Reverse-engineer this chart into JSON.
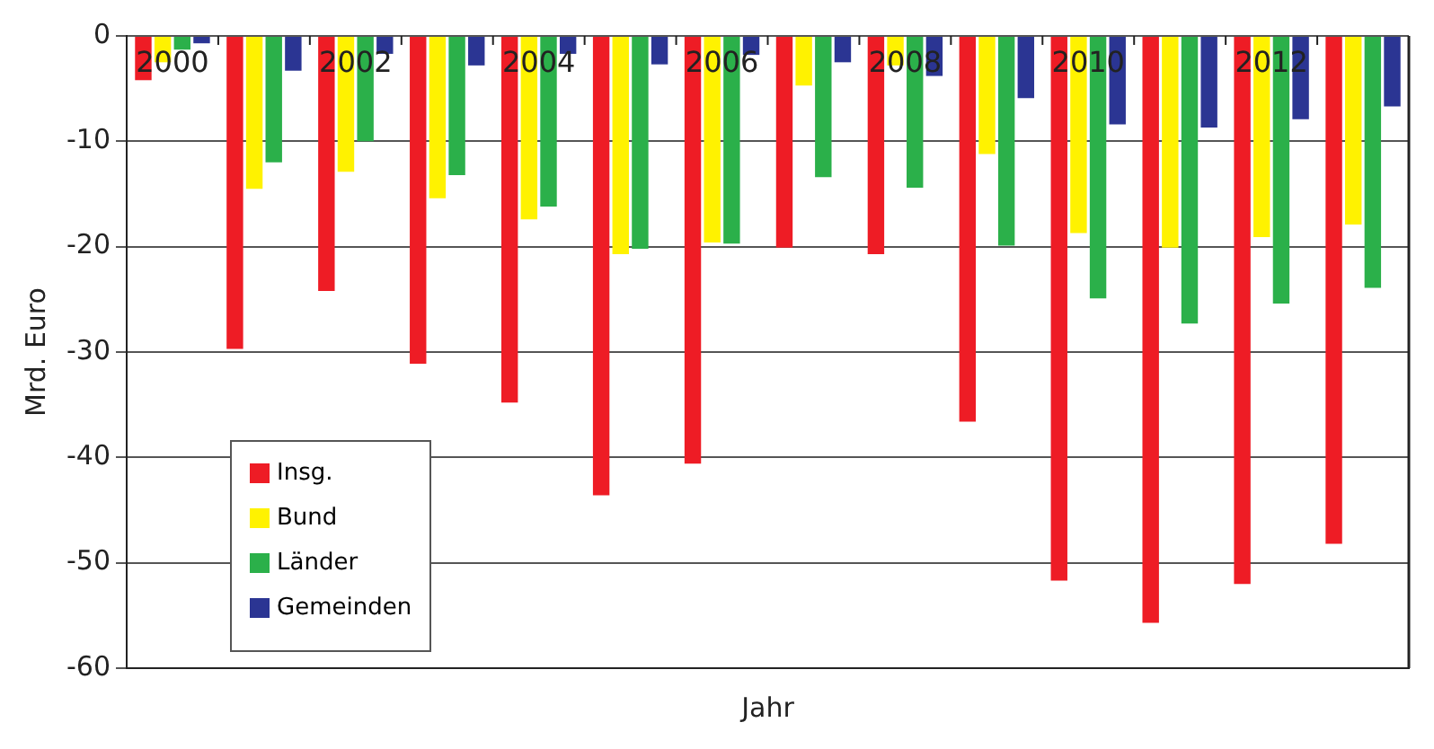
{
  "chart_data": {
    "type": "bar",
    "xlabel": "Jahr",
    "ylabel": "Mrd. Euro",
    "categories": [
      "2000",
      null,
      "2002",
      null,
      "2004",
      null,
      "2006",
      null,
      "2008",
      null,
      "2010",
      null,
      "2012",
      null
    ],
    "series": [
      {
        "name": "Insg.",
        "color": "#ee1c25",
        "values": [
          -4.2,
          -29.7,
          -24.2,
          -31.1,
          -34.8,
          -43.6,
          -40.6,
          -20.1,
          -20.7,
          -36.6,
          -51.7,
          -55.7,
          -52.0,
          -48.2
        ]
      },
      {
        "name": "Bund",
        "color": "#fff200",
        "values": [
          -2.5,
          -14.5,
          -12.9,
          -15.4,
          -17.4,
          -20.7,
          -19.6,
          -4.7,
          -2.8,
          -11.2,
          -18.7,
          -20.1,
          -19.1,
          -17.9
        ]
      },
      {
        "name": "Länder",
        "color": "#2bb04a",
        "values": [
          -1.3,
          -12.0,
          -10.0,
          -13.2,
          -16.2,
          -20.2,
          -19.7,
          -13.4,
          -14.4,
          -19.9,
          -24.9,
          -27.3,
          -25.4,
          -23.9
        ]
      },
      {
        "name": "Gemeinden",
        "color": "#2b3593",
        "values": [
          -0.7,
          -3.3,
          -1.7,
          -2.8,
          -1.7,
          -2.7,
          -1.8,
          -2.5,
          -3.8,
          -5.9,
          -8.4,
          -8.7,
          -7.9,
          -6.7
        ]
      }
    ],
    "ylim": [
      -60,
      0
    ],
    "yticks": [
      0,
      -10,
      -20,
      -30,
      -40,
      -50,
      -60
    ],
    "grid": "y",
    "legend": "bottom left"
  }
}
